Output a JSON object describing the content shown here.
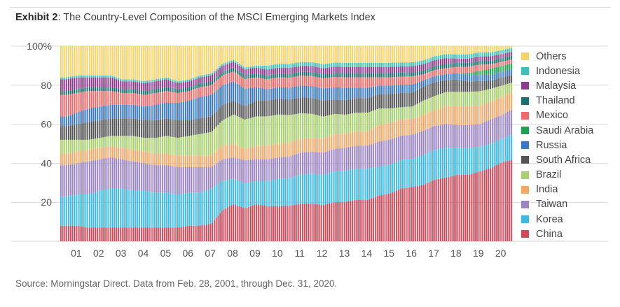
{
  "header": {
    "exhibit_label": "Exhibit 2",
    "title_text": ": The Country-Level Composition of the MSCI Emerging Markets Index"
  },
  "footer": {
    "source": "Source: Morningstar Direct. Data from Feb. 28, 2001, through Dec. 31, 2020."
  },
  "chart_data": {
    "type": "area",
    "stacked": true,
    "rendered_as": "dense stacked bars",
    "ylim": [
      0,
      100
    ],
    "y_ticks": [
      {
        "value": 20,
        "label": "20"
      },
      {
        "value": 40,
        "label": "40"
      },
      {
        "value": 60,
        "label": "60"
      },
      {
        "value": 80,
        "label": "80"
      },
      {
        "value": 100,
        "label": "100%"
      }
    ],
    "x_ticks": [
      "01",
      "02",
      "03",
      "04",
      "05",
      "06",
      "07",
      "08",
      "09",
      "10",
      "11",
      "12",
      "13",
      "14",
      "15",
      "16",
      "17",
      "18",
      "19",
      "20"
    ],
    "x_tick_years": [
      2001,
      2002,
      2003,
      2004,
      2005,
      2006,
      2007,
      2008,
      2009,
      2010,
      2011,
      2012,
      2013,
      2014,
      2015,
      2016,
      2017,
      2018,
      2019,
      2020
    ],
    "grid": "horizontal",
    "legend_position": "right",
    "x": [
      2001.0,
      2001.5,
      2002.0,
      2002.5,
      2003.0,
      2003.5,
      2004.0,
      2004.5,
      2005.0,
      2005.5,
      2006.0,
      2006.5,
      2007.0,
      2007.5,
      2008.0,
      2008.5,
      2009.0,
      2009.5,
      2010.0,
      2010.5,
      2011.0,
      2011.5,
      2012.0,
      2012.5,
      2013.0,
      2013.5,
      2014.0,
      2014.5,
      2015.0,
      2015.5,
      2016.0,
      2016.5,
      2017.0,
      2017.5,
      2018.0,
      2018.5,
      2019.0,
      2019.5,
      2020.0,
      2020.5,
      2020.9
    ],
    "series": [
      {
        "name": "China",
        "color": "#cc4a5a",
        "values": [
          8,
          8,
          7,
          7,
          7,
          7,
          7,
          7,
          7,
          7,
          7,
          8,
          8,
          9,
          16,
          19,
          17,
          19,
          18,
          18,
          18,
          19,
          19,
          18,
          19,
          19,
          20,
          20,
          22,
          23,
          26,
          27,
          28,
          31,
          32,
          32,
          32,
          34,
          36,
          40,
          42
        ]
      },
      {
        "name": "Korea",
        "color": "#3eb8e0",
        "values": [
          15,
          16,
          17,
          19,
          20,
          20,
          19,
          19,
          18,
          18,
          17,
          17,
          17,
          18,
          15,
          13,
          13,
          12,
          13,
          14,
          14,
          15,
          15,
          15,
          15,
          15,
          15,
          15,
          14,
          14,
          14,
          14,
          15,
          15,
          15,
          13,
          13,
          12,
          12,
          12,
          13
        ]
      },
      {
        "name": "Taiwan",
        "color": "#9a84c4",
        "values": [
          16,
          16,
          17,
          16,
          16,
          15,
          15,
          14,
          14,
          14,
          14,
          13,
          13,
          11,
          11,
          11,
          12,
          11,
          11,
          11,
          11,
          11,
          11,
          11,
          11,
          11,
          11,
          11,
          12,
          12,
          12,
          12,
          12,
          12,
          12,
          11,
          11,
          11,
          12,
          12,
          13
        ]
      },
      {
        "name": "India",
        "color": "#f0a86a",
        "values": [
          6,
          6,
          6,
          6,
          6,
          6,
          6,
          6,
          6,
          6,
          6,
          6,
          6,
          6,
          7,
          7,
          6,
          7,
          7,
          7,
          7,
          7,
          7,
          7,
          7,
          7,
          7,
          7,
          8,
          8,
          8,
          8,
          8,
          8,
          9,
          9,
          9,
          9,
          9,
          9,
          9
        ]
      },
      {
        "name": "Brazil",
        "color": "#a8d070",
        "values": [
          7,
          6,
          5,
          5,
          5,
          6,
          7,
          7,
          8,
          9,
          9,
          10,
          11,
          12,
          13,
          15,
          15,
          15,
          15,
          15,
          14,
          13,
          12,
          11,
          10,
          9,
          9,
          9,
          8,
          7,
          6,
          6,
          7,
          7,
          7,
          7,
          7,
          7,
          6,
          6,
          5
        ]
      },
      {
        "name": "South Africa",
        "color": "#555555",
        "values": [
          7,
          8,
          9,
          9,
          9,
          9,
          9,
          9,
          9,
          9,
          9,
          8,
          8,
          8,
          8,
          7,
          7,
          8,
          8,
          8,
          8,
          8,
          8,
          8,
          7,
          7,
          7,
          7,
          7,
          7,
          7,
          7,
          7,
          7,
          6,
          6,
          5,
          5,
          4,
          4,
          4
        ]
      },
      {
        "name": "Russia",
        "color": "#3c78c0",
        "values": [
          5,
          6,
          7,
          7,
          7,
          7,
          7,
          7,
          8,
          8,
          9,
          10,
          11,
          11,
          10,
          10,
          9,
          7,
          6,
          6,
          6,
          6,
          6,
          6,
          6,
          6,
          5,
          5,
          4,
          4,
          4,
          4,
          3,
          3,
          3,
          3,
          3,
          3,
          3,
          3,
          3
        ]
      },
      {
        "name": "Saudi Arabia",
        "color": "#1ea050",
        "values": [
          0,
          0,
          0,
          0,
          0,
          0,
          0,
          0,
          0,
          0,
          0,
          0,
          0,
          0,
          0,
          0,
          0,
          0,
          0,
          0,
          0,
          0,
          0,
          0,
          0,
          0,
          0,
          0,
          0,
          0,
          0,
          0,
          0,
          0,
          0,
          0,
          1,
          2,
          3,
          3,
          3
        ]
      },
      {
        "name": "Mexico",
        "color": "#ee6a6a",
        "values": [
          11,
          10,
          9,
          8,
          7,
          6,
          6,
          6,
          6,
          6,
          5,
          5,
          5,
          5,
          5,
          5,
          5,
          5,
          5,
          5,
          5,
          5,
          5,
          5,
          5,
          5,
          5,
          5,
          4,
          4,
          4,
          4,
          3,
          3,
          3,
          3,
          3,
          3,
          2,
          2,
          2
        ]
      },
      {
        "name": "Thailand",
        "color": "#1a6f6f",
        "values": [
          2,
          2,
          2,
          2,
          2,
          2,
          2,
          2,
          2,
          2,
          2,
          2,
          2,
          2,
          2,
          2,
          2,
          2,
          2,
          2,
          2,
          2,
          2,
          2,
          2,
          2,
          2,
          2,
          2,
          2,
          2,
          2,
          2,
          2,
          2,
          2,
          2,
          2,
          2,
          2,
          2
        ]
      },
      {
        "name": "Malaysia",
        "color": "#8e3c8e",
        "values": [
          6,
          6,
          5,
          5,
          5,
          4,
          4,
          4,
          4,
          4,
          3,
          3,
          3,
          3,
          3,
          3,
          3,
          3,
          3,
          3,
          3,
          3,
          3,
          3,
          3,
          3,
          3,
          3,
          3,
          3,
          3,
          3,
          3,
          3,
          3,
          2,
          2,
          2,
          2,
          2,
          2
        ]
      },
      {
        "name": "Indonesia",
        "color": "#3fc0b4",
        "values": [
          1,
          1,
          1,
          1,
          1,
          1,
          1,
          1,
          1,
          1,
          1,
          1,
          1,
          1,
          1,
          1,
          1,
          1,
          2,
          2,
          2,
          2,
          2,
          2,
          2,
          2,
          2,
          2,
          2,
          2,
          2,
          2,
          2,
          2,
          2,
          2,
          2,
          2,
          2,
          2,
          2
        ]
      },
      {
        "name": "Others",
        "color": "#f5d36a",
        "values": [
          16,
          15,
          15,
          15,
          15,
          17,
          17,
          18,
          17,
          16,
          18,
          17,
          15,
          14,
          9,
          7,
          11,
          10,
          10,
          9,
          9,
          8,
          8,
          9,
          8,
          8,
          8,
          8,
          8,
          8,
          8,
          8,
          7,
          5,
          4,
          4,
          4,
          3,
          3,
          2,
          1
        ]
      }
    ]
  }
}
